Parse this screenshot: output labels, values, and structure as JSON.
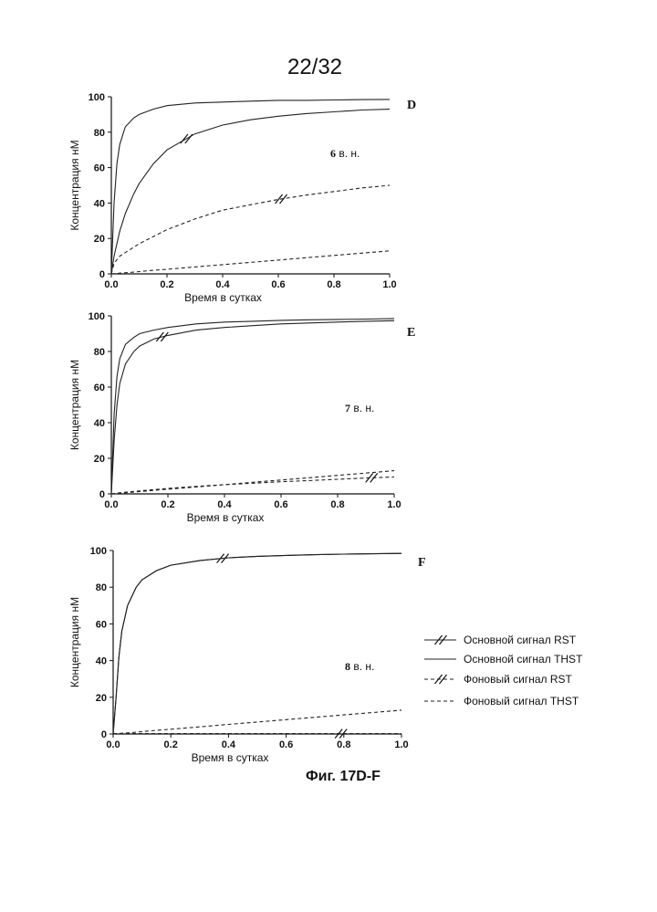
{
  "page_number": "22/32",
  "caption": "Фиг. 17D-F",
  "legend": [
    {
      "label": "Основной сигнал RST",
      "style": "solid-slash"
    },
    {
      "label": "Основной сигнал THST",
      "style": "solid"
    },
    {
      "label": "Фоновый сигнал RST",
      "style": "dashed-slash"
    },
    {
      "label": "Фоновый сигнал THST",
      "style": "dashed"
    }
  ],
  "chart_data": [
    {
      "type": "line",
      "panel_letter": "D",
      "annotation": {
        "bold": "6",
        "text": " в. н."
      },
      "xlabel": "Время в сутках",
      "ylabel": "Концентрация нМ",
      "xlim": [
        0,
        1.0
      ],
      "ylim": [
        0,
        100
      ],
      "x_ticks": [
        "0.0",
        "0.2",
        "0.4",
        "0.6",
        "0.8",
        "1.0"
      ],
      "y_ticks": [
        "0",
        "20",
        "40",
        "60",
        "80",
        "100"
      ],
      "x": [
        0,
        0.01,
        0.02,
        0.03,
        0.05,
        0.08,
        0.1,
        0.15,
        0.2,
        0.3,
        0.4,
        0.5,
        0.6,
        0.7,
        0.8,
        0.9,
        1.0
      ],
      "series": [
        {
          "name": "Основной сигнал RST",
          "style": "solid-slash",
          "values": [
            0,
            10,
            17,
            24,
            34,
            45,
            51,
            62,
            70,
            79,
            84,
            87,
            89,
            90.5,
            91.5,
            92.5,
            93
          ]
        },
        {
          "name": "Основной сигнал THST",
          "style": "solid",
          "values": [
            0,
            40,
            62,
            73,
            83,
            88,
            90,
            93,
            95,
            96.5,
            97,
            97.5,
            98,
            98,
            98.2,
            98.4,
            98.5
          ]
        },
        {
          "name": "Фоновый сигнал RST",
          "style": "dashed-slash",
          "values": [
            0,
            6,
            8,
            10,
            12,
            15,
            17,
            21,
            25,
            31,
            36,
            39,
            42,
            44.5,
            46.5,
            48.5,
            50
          ]
        },
        {
          "name": "Фоновый сигнал THST",
          "style": "dashed",
          "values": [
            0,
            0.1,
            0.2,
            0.4,
            0.6,
            1.0,
            1.3,
            2,
            2.6,
            3.9,
            5.2,
            6.5,
            7.8,
            9.1,
            10.4,
            11.7,
            13
          ]
        }
      ]
    },
    {
      "type": "line",
      "panel_letter": "E",
      "annotation": {
        "bold": "7",
        "text": " в. н."
      },
      "xlabel": "Время в сутках",
      "ylabel": "Концентрация нМ",
      "xlim": [
        0,
        1.0
      ],
      "ylim": [
        0,
        100
      ],
      "x_ticks": [
        "0.0",
        "0.2",
        "0.4",
        "0.6",
        "0.8",
        "1.0"
      ],
      "y_ticks": [
        "0",
        "20",
        "40",
        "60",
        "80",
        "100"
      ],
      "x": [
        0,
        0.01,
        0.02,
        0.03,
        0.05,
        0.08,
        0.1,
        0.15,
        0.2,
        0.3,
        0.4,
        0.5,
        0.6,
        0.7,
        0.8,
        0.9,
        1.0
      ],
      "series": [
        {
          "name": "Основной сигнал RST",
          "style": "solid-slash",
          "values": [
            0,
            30,
            50,
            62,
            73,
            80,
            83,
            87,
            89,
            92,
            93.5,
            94.5,
            95.5,
            96,
            96.5,
            97,
            97.3
          ]
        },
        {
          "name": "Основной сигнал THST",
          "style": "solid",
          "values": [
            0,
            45,
            66,
            76,
            84,
            88,
            90,
            92,
            93.5,
            95.5,
            96.5,
            97,
            97.5,
            97.8,
            98,
            98.2,
            98.5
          ]
        },
        {
          "name": "Фоновый сигнал RST",
          "style": "dashed-slash",
          "values": [
            0,
            0.2,
            0.4,
            0.6,
            0.9,
            1.4,
            1.7,
            2.4,
            3.1,
            4.2,
            5.2,
            6,
            6.8,
            7.5,
            8.2,
            8.9,
            9.5
          ]
        },
        {
          "name": "Фоновый сигнал THST",
          "style": "dashed",
          "values": [
            0,
            0.1,
            0.2,
            0.4,
            0.6,
            1.0,
            1.3,
            2,
            2.6,
            3.9,
            5.2,
            6.5,
            7.8,
            9.1,
            10.4,
            11.7,
            13
          ]
        }
      ]
    },
    {
      "type": "line",
      "panel_letter": "F",
      "annotation": {
        "bold": "8",
        "text": " в. н."
      },
      "xlabel": "Время в сутках",
      "ylabel": "Концентрация нМ",
      "xlim": [
        0,
        1.0
      ],
      "ylim": [
        0,
        100
      ],
      "x_ticks": [
        "0.0",
        "0.2",
        "0.4",
        "0.6",
        "0.8",
        "1.0"
      ],
      "y_ticks": [
        "0",
        "20",
        "40",
        "60",
        "80",
        "100"
      ],
      "x": [
        0,
        0.01,
        0.02,
        0.03,
        0.05,
        0.08,
        0.1,
        0.15,
        0.2,
        0.3,
        0.4,
        0.5,
        0.6,
        0.7,
        0.8,
        0.9,
        1.0
      ],
      "series": [
        {
          "name": "Основной сигнал RST",
          "style": "solid-slash",
          "values": [
            0,
            20,
            42,
            56,
            70,
            80,
            84,
            89,
            92,
            94.5,
            96,
            96.8,
            97.3,
            97.7,
            98,
            98.2,
            98.4
          ]
        },
        {
          "name": "Основной сигнал THST",
          "style": "solid",
          "values": [
            0,
            20,
            42,
            56,
            70,
            80,
            84,
            89,
            92,
            94.5,
            96,
            96.8,
            97.3,
            97.7,
            98,
            98.2,
            98.4
          ]
        },
        {
          "name": "Фоновый сигнал RST",
          "style": "dashed-slash",
          "values": [
            0.2,
            0.2,
            0.2,
            0.2,
            0.2,
            0.2,
            0.2,
            0.2,
            0.2,
            0.2,
            0.2,
            0.2,
            0.2,
            0.2,
            0.2,
            0.2,
            0.2
          ]
        },
        {
          "name": "Фоновый сигнал THST",
          "style": "dashed",
          "values": [
            0,
            0.1,
            0.2,
            0.4,
            0.6,
            1.0,
            1.3,
            2,
            2.6,
            3.9,
            5.2,
            6.5,
            7.8,
            9.1,
            10.4,
            11.7,
            13
          ]
        }
      ]
    }
  ]
}
